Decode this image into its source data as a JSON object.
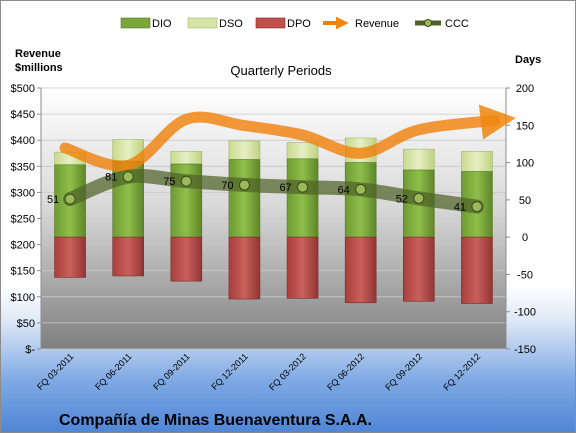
{
  "chart_data": {
    "type": "bar",
    "title": "Quarterly Periods",
    "footer": "Compañía de Minas Buenaventura S.A.A.",
    "ylabel_left": [
      "Revenue",
      "$millions"
    ],
    "ylabel_right": "Days",
    "categories": [
      "FQ 03-2011",
      "FQ 06-2011",
      "FQ 09-2011",
      "FQ 12-2011",
      "FQ 03-2012",
      "FQ 06-2012",
      "FQ 09-2012",
      "FQ 12-2012"
    ],
    "left_axis": {
      "min": 0,
      "max": 500,
      "step": 50,
      "ticks": [
        "$-",
        "$50",
        "$100",
        "$150",
        "$200",
        "$250",
        "$300",
        "$350",
        "$400",
        "$450",
        "$500"
      ]
    },
    "right_axis": {
      "min": -150,
      "max": 200,
      "step": 50,
      "ticks": [
        "-150",
        "-100",
        "-50",
        "0",
        "50",
        "100",
        "150",
        "200"
      ]
    },
    "series": [
      {
        "name": "DIO",
        "axis": "right",
        "kind": "stacked-bar",
        "color": "#7aa63a",
        "values": [
          97,
          102,
          98,
          104,
          105,
          100,
          90,
          88
        ]
      },
      {
        "name": "DSO",
        "axis": "right",
        "kind": "stacked-bar",
        "color": "#d7e4a6",
        "values": [
          17,
          29,
          17,
          25,
          22,
          33,
          28,
          27
        ]
      },
      {
        "name": "DPO",
        "axis": "right",
        "kind": "bar-negative",
        "color": "#c0504d",
        "values": [
          -54,
          -52,
          -59,
          -83,
          -82,
          -88,
          -86,
          -89
        ]
      },
      {
        "name": "Revenue",
        "axis": "left",
        "kind": "line",
        "color": "#f07f09",
        "values": [
          385,
          352,
          440,
          428,
          410,
          375,
          420,
          438
        ]
      },
      {
        "name": "CCC",
        "axis": "right",
        "kind": "line",
        "color": "#4f6228",
        "values": [
          51,
          81,
          75,
          70,
          67,
          64,
          52,
          41
        ]
      }
    ],
    "legend": {
      "position": "top"
    }
  }
}
